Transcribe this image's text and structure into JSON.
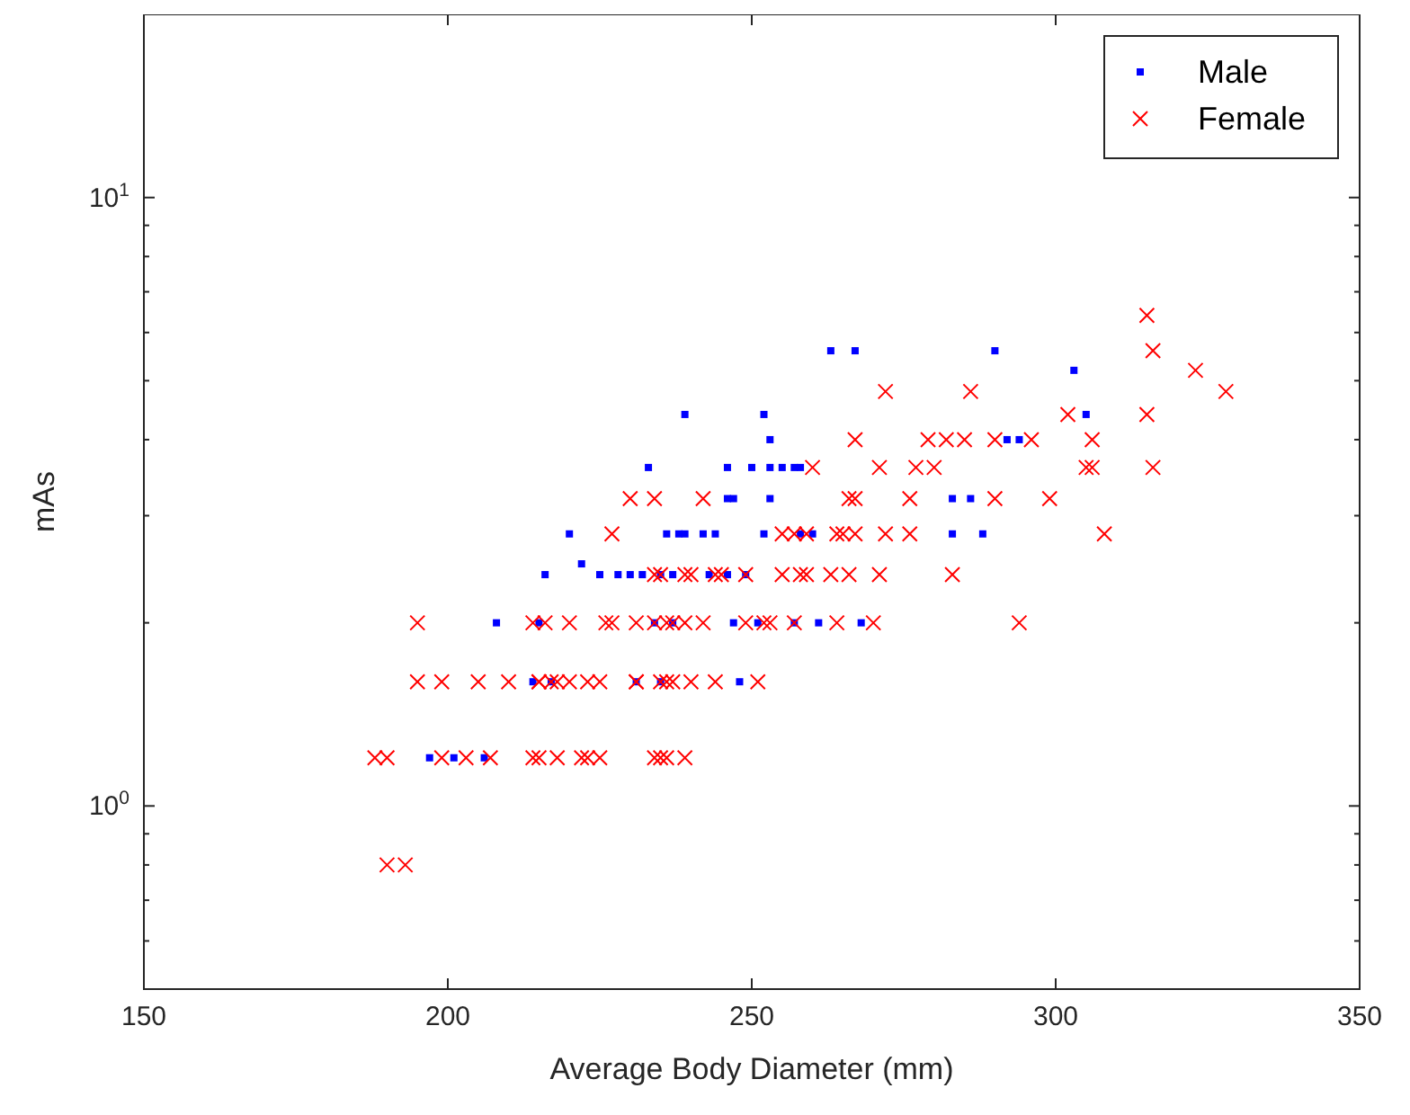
{
  "chart_data": {
    "type": "scatter",
    "xlabel": "Average Body Diameter (mm)",
    "ylabel": "mAs",
    "log": "y",
    "grid": false,
    "legend": "top right",
    "xlim": [
      150,
      350
    ],
    "xticks": [
      150,
      200,
      250,
      300,
      350
    ],
    "ylim": [
      0.5,
      20
    ],
    "yticks": [
      {
        "value": 0.5,
        "label": null
      },
      {
        "value": 0.6,
        "label": null
      },
      {
        "value": 0.7,
        "label": null
      },
      {
        "value": 0.8,
        "label": null
      },
      {
        "value": 0.9,
        "label": null
      },
      {
        "value": 1,
        "label": "10$^{0}$"
      },
      {
        "value": 2,
        "label": null
      },
      {
        "value": 3,
        "label": null
      },
      {
        "value": 4,
        "label": null
      },
      {
        "value": 5,
        "label": null
      },
      {
        "value": 6,
        "label": null
      },
      {
        "value": 7,
        "label": null
      },
      {
        "value": 8,
        "label": null
      },
      {
        "value": 9,
        "label": null
      },
      {
        "value": 10,
        "label": "10$^{1}$"
      },
      {
        "value": 20,
        "label": null
      }
    ],
    "series": [
      {
        "name": "Male",
        "color": "#0000ff",
        "marker": "square",
        "x": [
          197,
          201,
          206,
          214,
          217,
          231,
          235,
          248,
          208,
          215,
          234,
          237,
          247,
          251,
          257,
          261,
          268,
          216,
          225,
          228,
          230,
          232,
          235,
          237,
          243,
          246,
          249,
          222,
          220,
          236,
          238,
          239,
          242,
          244,
          252,
          258,
          260,
          283,
          288,
          246,
          247,
          253,
          283,
          286,
          233,
          246,
          250,
          253,
          255,
          257,
          258,
          253,
          292,
          294,
          239,
          252,
          305,
          303,
          263,
          267,
          290
        ],
        "values": [
          1.2,
          1.2,
          1.2,
          1.6,
          1.6,
          1.6,
          1.6,
          1.6,
          2,
          2,
          2,
          2,
          2,
          2,
          2,
          2,
          2,
          2.4,
          2.4,
          2.4,
          2.4,
          2.4,
          2.4,
          2.4,
          2.4,
          2.4,
          2.4,
          2.5,
          2.8,
          2.8,
          2.8,
          2.8,
          2.8,
          2.8,
          2.8,
          2.8,
          2.8,
          2.8,
          2.8,
          3.2,
          3.2,
          3.2,
          3.2,
          3.2,
          3.6,
          3.6,
          3.6,
          3.6,
          3.6,
          3.6,
          3.6,
          4,
          4,
          4,
          4.4,
          4.4,
          4.4,
          5.2,
          5.6,
          5.6,
          5.6
        ]
      },
      {
        "name": "Female",
        "color": "#ff0000",
        "marker": "cross",
        "x": [
          190,
          193,
          188,
          190,
          199,
          203,
          207,
          214,
          215,
          218,
          222,
          223,
          225,
          234,
          235,
          236,
          239,
          195,
          199,
          205,
          210,
          215,
          215,
          217,
          218,
          220,
          223,
          225,
          231,
          231,
          235,
          236,
          237,
          240,
          244,
          251,
          195,
          214,
          216,
          220,
          226,
          227,
          231,
          234,
          236,
          237,
          239,
          242,
          249,
          252,
          253,
          257,
          264,
          270,
          294,
          234,
          235,
          239,
          240,
          244,
          245,
          249,
          255,
          258,
          259,
          263,
          266,
          271,
          283,
          227,
          255,
          257,
          259,
          264,
          265,
          267,
          272,
          276,
          308,
          230,
          234,
          242,
          266,
          267,
          276,
          290,
          299,
          260,
          271,
          277,
          280,
          305,
          306,
          316,
          267,
          279,
          282,
          285,
          290,
          296,
          306,
          302,
          315,
          272,
          286,
          328,
          323,
          316,
          315
        ],
        "values": [
          0.8,
          0.8,
          1.2,
          1.2,
          1.2,
          1.2,
          1.2,
          1.2,
          1.2,
          1.2,
          1.2,
          1.2,
          1.2,
          1.2,
          1.2,
          1.2,
          1.2,
          1.6,
          1.6,
          1.6,
          1.6,
          1.6,
          1.6,
          1.6,
          1.6,
          1.6,
          1.6,
          1.6,
          1.6,
          1.6,
          1.6,
          1.6,
          1.6,
          1.6,
          1.6,
          1.6,
          2,
          2,
          2,
          2,
          2,
          2,
          2,
          2,
          2,
          2,
          2,
          2,
          2,
          2,
          2,
          2,
          2,
          2,
          2,
          2.4,
          2.4,
          2.4,
          2.4,
          2.4,
          2.4,
          2.4,
          2.4,
          2.4,
          2.4,
          2.4,
          2.4,
          2.4,
          2.4,
          2.8,
          2.8,
          2.8,
          2.8,
          2.8,
          2.8,
          2.8,
          2.8,
          2.8,
          2.8,
          3.2,
          3.2,
          3.2,
          3.2,
          3.2,
          3.2,
          3.2,
          3.2,
          3.6,
          3.6,
          3.6,
          3.6,
          3.6,
          3.6,
          3.6,
          4,
          4,
          4,
          4,
          4,
          4,
          4,
          4.4,
          4.4,
          4.8,
          4.8,
          4.8,
          5.2,
          5.6,
          6.4
        ]
      }
    ]
  }
}
